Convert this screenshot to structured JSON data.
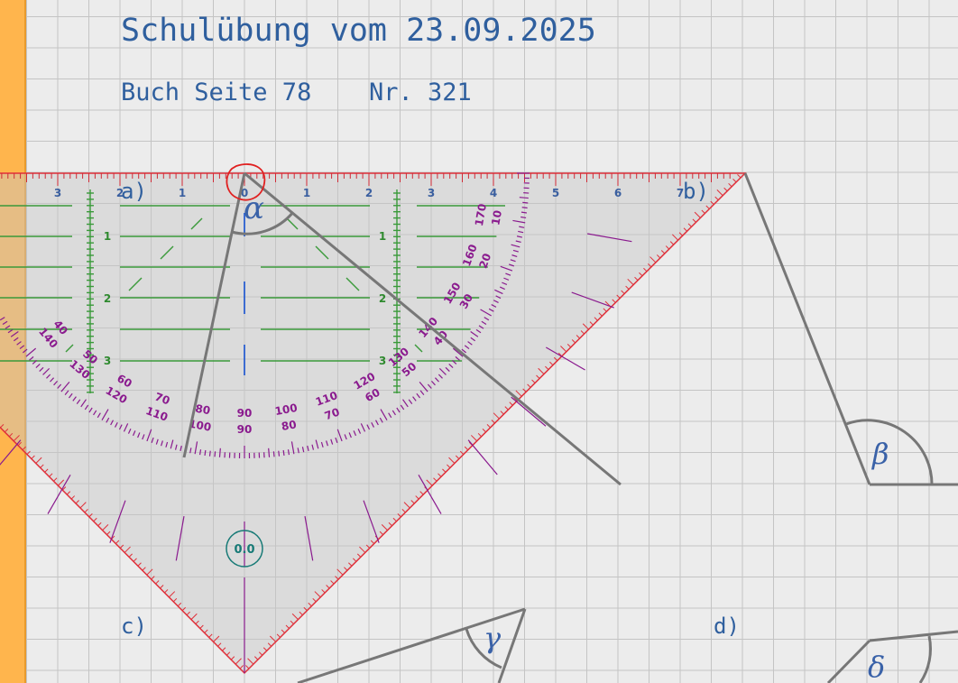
{
  "worksheet": {
    "title": "Schulübung vom 23.09.2025",
    "book_page": "Buch Seite 78",
    "book_number": "Nr. 321"
  },
  "tasks": [
    {
      "label": "a)",
      "angle_symbol": "α"
    },
    {
      "label": "b)",
      "angle_symbol": "β"
    },
    {
      "label": "c)",
      "angle_symbol": "γ"
    },
    {
      "label": "d)",
      "angle_symbol": "δ"
    }
  ],
  "protractor": {
    "readout": "0.0",
    "cm_labels": [
      "3",
      "2",
      "1",
      "0",
      "1",
      "2",
      "3",
      "4",
      "5",
      "6",
      "7"
    ],
    "vertical_labels": [
      "1",
      "2",
      "3"
    ],
    "outer_degrees": [
      "10",
      "20",
      "30",
      "40",
      "50",
      "60",
      "70",
      "80",
      "90",
      "100",
      "110",
      "120",
      "130",
      "140"
    ],
    "inner_degrees": [
      "170",
      "160",
      "150",
      "140",
      "130",
      "120",
      "110",
      "100",
      "90",
      "80",
      "70",
      "60",
      "50",
      "40"
    ],
    "colors": {
      "edge": "#e0303a",
      "scale": "#8a1a8e",
      "helper": "#3a9a3a",
      "readout": "#177a76"
    }
  }
}
